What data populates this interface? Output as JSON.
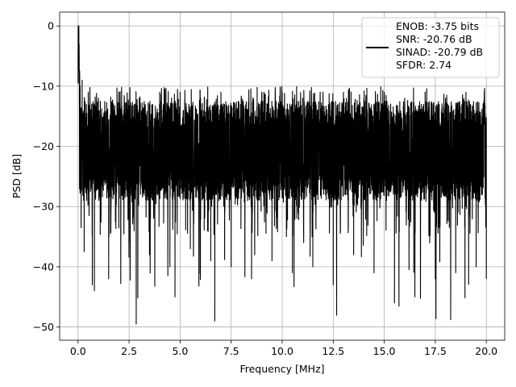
{
  "chart_data": {
    "type": "line",
    "title": "",
    "xlabel": "Frequency [MHz]",
    "ylabel": "PSD [dB]",
    "xlim": [
      -0.9,
      20.9
    ],
    "ylim": [
      -52.2,
      2.3
    ],
    "xticks": [
      0.0,
      2.5,
      5.0,
      7.5,
      10.0,
      12.5,
      15.0,
      17.5,
      20.0
    ],
    "xtick_labels": [
      "0.0",
      "2.5",
      "5.0",
      "7.5",
      "10.0",
      "12.5",
      "15.0",
      "17.5",
      "20.0"
    ],
    "yticks": [
      0,
      -10,
      -20,
      -30,
      -40,
      -50
    ],
    "ytick_labels": [
      "0",
      "−10",
      "−20",
      "−30",
      "−40",
      "−50"
    ],
    "grid": true,
    "legend_position": "top-right",
    "line_color": "#000000",
    "series": [
      {
        "name": "ENOB: -3.75 bits\nSNR: -20.76 dB\nSINAD: -20.79 dB\nSFDR: 2.74",
        "legend_lines": [
          "ENOB: -3.75 bits",
          "SNR: -20.76 dB",
          "SINAD: -20.79 dB",
          "SFDR: 2.74"
        ],
        "x": [
          0.0,
          0.02,
          0.04,
          0.06,
          0.08,
          0.1,
          0.15,
          0.2,
          0.3,
          0.5,
          0.7,
          0.8,
          1.0,
          1.5,
          2.0,
          2.5,
          2.85,
          3.0,
          3.5,
          4.0,
          4.5,
          4.75,
          5.0,
          5.5,
          6.0,
          6.5,
          6.7,
          7.0,
          7.5,
          8.0,
          8.5,
          9.0,
          9.5,
          10.0,
          10.5,
          11.0,
          11.5,
          12.0,
          12.5,
          13.0,
          13.5,
          14.0,
          14.5,
          15.0,
          15.5,
          16.0,
          16.5,
          17.0,
          17.5,
          18.0,
          18.5,
          19.0,
          19.5,
          20.0
        ],
        "y": [
          -9.5,
          0.0,
          -3.0,
          -7.5,
          -27.0,
          -10.0,
          -33.5,
          -9.0,
          -37.5,
          -11.0,
          -43.0,
          -44.0,
          -12.0,
          -42.0,
          -11.0,
          -36.0,
          -49.5,
          -12.0,
          -38.0,
          -11.0,
          -40.0,
          -45.0,
          -11.0,
          -37.0,
          -12.0,
          -39.0,
          -49.0,
          -11.0,
          -40.0,
          -12.0,
          -42.0,
          -11.0,
          -39.0,
          -11.0,
          -41.0,
          -12.0,
          -40.0,
          -11.0,
          -43.0,
          -11.0,
          -38.0,
          -12.0,
          -41.0,
          -11.0,
          -46.0,
          -12.0,
          -45.0,
          -11.0,
          -42.0,
          -12.0,
          -41.0,
          -11.0,
          -40.0,
          -42.0
        ]
      }
    ],
    "band": {
      "upper_typical": -12.5,
      "lower_typical": -29.0,
      "mid_typical": -20.0
    }
  }
}
